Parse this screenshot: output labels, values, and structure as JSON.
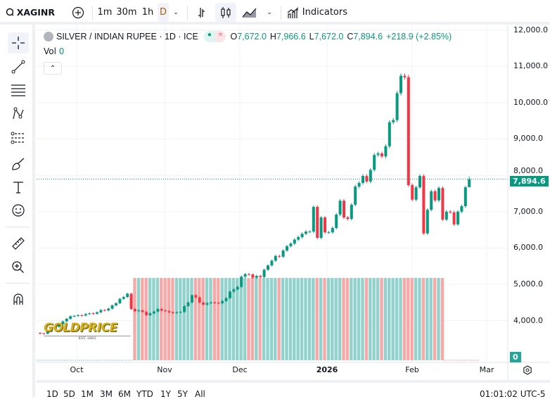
{
  "toolbar": {
    "symbol": "XAGINR",
    "intervals": [
      "1m",
      "30m",
      "1h",
      "D"
    ],
    "active_interval": "D",
    "indicators_label": "Indicators"
  },
  "legend": {
    "title": "SILVER / INDIAN RUPEE · 1D · ICE",
    "o_label": "O",
    "o": "7,672.0",
    "h_label": "H",
    "h": "7,966.6",
    "l_label": "L",
    "l": "7,672.0",
    "c_label": "C",
    "c": "7,894.6",
    "change": "+218.9 (+2.85%)",
    "vol_label": "Vol",
    "vol": "0"
  },
  "price_axis": {
    "ticks": [
      "12,000.0",
      "11,000.0",
      "10,000.0",
      "9,000.0",
      "8,000.0",
      "7,000.0",
      "6,000.0",
      "5,000.0",
      "4,000.0"
    ],
    "last_price": "7,894.6",
    "volume_label": "0"
  },
  "time_axis": {
    "ticks": [
      "Oct",
      "Nov",
      "Dec",
      "2026",
      "Feb",
      "Mar"
    ]
  },
  "bottom": {
    "ranges": [
      "1D",
      "5D",
      "1M",
      "3M",
      "6M",
      "YTD",
      "1Y",
      "5Y",
      "All"
    ],
    "clock": "01:01:02 UTC-5"
  },
  "logo": "GOLDPRICE EST. 2002",
  "colors": {
    "up": "#089981",
    "down": "#f23645",
    "vol_up": "#92d2cc",
    "vol_down": "#f7a9a7"
  },
  "chart_data": {
    "type": "candlestick",
    "ylim": [
      3000,
      12000
    ],
    "x_ticks": [
      "Oct",
      "Nov",
      "Dec",
      "2026",
      "Feb",
      "Mar"
    ],
    "close": [
      3650,
      3640,
      3700,
      3760,
      3830,
      3900,
      3980,
      4050,
      4120,
      4130,
      4150,
      4140,
      4180,
      4200,
      4190,
      4230,
      4290,
      4280,
      4330,
      4420,
      4480,
      4600,
      4650,
      4740,
      4320,
      4260,
      4280,
      4240,
      4150,
      4200,
      4250,
      4320,
      4280,
      4260,
      4230,
      4210,
      4230,
      4240,
      4400,
      4500,
      4700,
      4640,
      4500,
      4440,
      4480,
      4500,
      4490,
      4480,
      4540,
      4620,
      4800,
      4860,
      4930,
      5210,
      5280,
      5270,
      5180,
      5230,
      5200,
      5400,
      5520,
      5650,
      5780,
      5760,
      5930,
      6050,
      6120,
      6230,
      6300,
      6390,
      6450,
      6450,
      7130,
      6280,
      6840,
      6430,
      6430,
      6550,
      6920,
      7300,
      6840,
      6800,
      7190,
      7690,
      7790,
      7980,
      7830,
      8150,
      8560,
      8600,
      8520,
      8800,
      9460,
      9520,
      10260,
      10740,
      10700,
      7730,
      7330,
      7670,
      7980,
      6400,
      7050,
      7560,
      7310,
      7650,
      6780,
      7000,
      6980,
      6650,
      7000,
      7150,
      7670,
      7894.6
    ],
    "last": {
      "open": 7672.0,
      "high": 7966.6,
      "low": 7672.0,
      "close": 7894.6
    },
    "volume": 0
  }
}
